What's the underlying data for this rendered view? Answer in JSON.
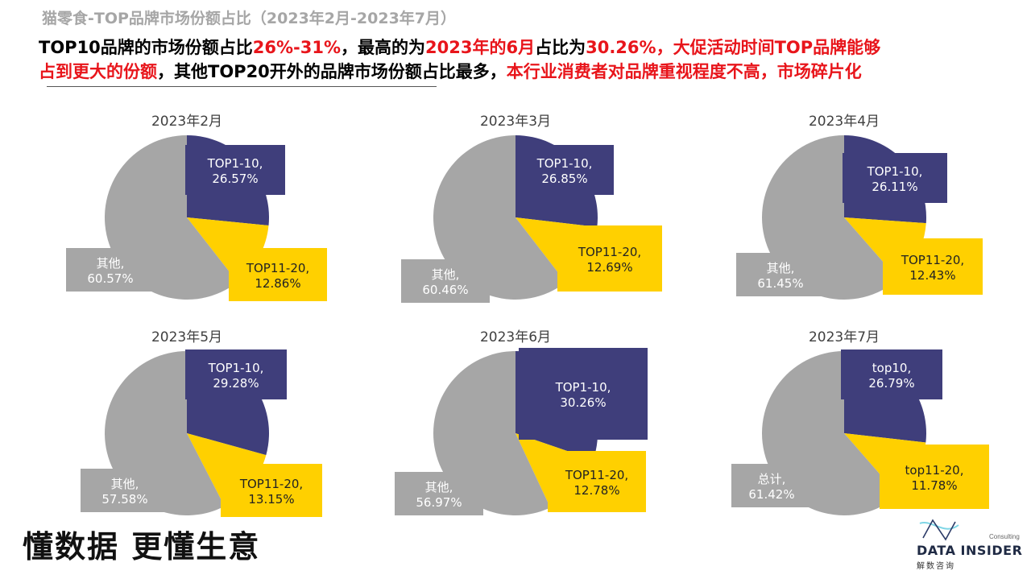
{
  "header": {
    "title": "猫零食-TOP品牌市场份额占比（2023年2月-2023年7月）"
  },
  "headline": {
    "line1_a": "TOP10品牌的市场份额占比",
    "line1_b": "26%-31%",
    "line1_c": "，最高的为",
    "line1_d": "2023年的6月",
    "line1_e": "占比为",
    "line1_f": "30.26%，大促活动时间TOP品牌能够",
    "line2_a": "占到更大的份额",
    "line2_b": "，其他TOP20开外的品牌市场份额占比最多，",
    "line2_c": "本行业消费者对品牌重视程度不高，市场碎片化"
  },
  "colors": {
    "top10": "#3f3e7b",
    "top11_20": "#ffd000",
    "other": "#a6a6a6",
    "red": "#e8151b"
  },
  "chart_data": [
    {
      "type": "pie",
      "title": "2023年2月",
      "slices": [
        {
          "label": "TOP1-10,",
          "value": 26.57,
          "value_text": "26.57%"
        },
        {
          "label": "TOP11-20,",
          "value": 12.86,
          "value_text": "12.86%"
        },
        {
          "label": "其他,",
          "value": 60.57,
          "value_text": "60.57%"
        }
      ]
    },
    {
      "type": "pie",
      "title": "2023年3月",
      "slices": [
        {
          "label": "TOP1-10,",
          "value": 26.85,
          "value_text": "26.85%"
        },
        {
          "label": "TOP11-20,",
          "value": 12.69,
          "value_text": "12.69%"
        },
        {
          "label": "其他,",
          "value": 60.46,
          "value_text": "60.46%"
        }
      ]
    },
    {
      "type": "pie",
      "title": "2023年4月",
      "slices": [
        {
          "label": "TOP1-10,",
          "value": 26.11,
          "value_text": "26.11%"
        },
        {
          "label": "TOP11-20,",
          "value": 12.43,
          "value_text": "12.43%"
        },
        {
          "label": "其他,",
          "value": 61.45,
          "value_text": "61.45%"
        }
      ]
    },
    {
      "type": "pie",
      "title": "2023年5月",
      "slices": [
        {
          "label": "TOP1-10,",
          "value": 29.28,
          "value_text": "29.28%"
        },
        {
          "label": "TOP11-20,",
          "value": 13.15,
          "value_text": "13.15%"
        },
        {
          "label": "其他,",
          "value": 57.58,
          "value_text": "57.58%"
        }
      ]
    },
    {
      "type": "pie",
      "title": "2023年6月",
      "slices": [
        {
          "label": "TOP1-10,",
          "value": 30.26,
          "value_text": "30.26%"
        },
        {
          "label": "TOP11-20,",
          "value": 12.78,
          "value_text": "12.78%"
        },
        {
          "label": "其他,",
          "value": 56.97,
          "value_text": "56.97%"
        }
      ]
    },
    {
      "type": "pie",
      "title": "2023年7月",
      "slices": [
        {
          "label": "top10,",
          "value": 26.79,
          "value_text": "26.79%"
        },
        {
          "label": "top11-20,",
          "value": 11.78,
          "value_text": "11.78%"
        },
        {
          "label": "总计,",
          "value": 61.42,
          "value_text": "61.42%"
        }
      ]
    }
  ],
  "footer": {
    "slogan": "懂数据 更懂生意",
    "logo_main": "DATA INSIDER",
    "logo_sub": "Consulting",
    "logo_cn": "解数咨询"
  }
}
